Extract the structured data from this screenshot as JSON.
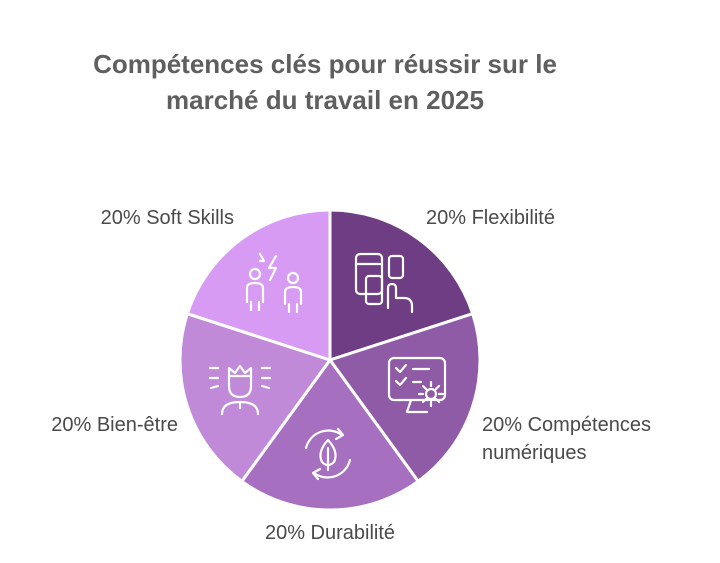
{
  "title": {
    "line1": "Compétences clés pour réussir sur le",
    "line2": "marché du travail en 2025"
  },
  "chart_data": {
    "type": "pie",
    "title": "Compétences clés pour réussir sur le marché du travail en 2025",
    "categories": [
      "Flexibilité",
      "Compétences numériques",
      "Durabilité",
      "Bien-être",
      "Soft Skills"
    ],
    "values": [
      20,
      20,
      20,
      20,
      20
    ],
    "unit": "%",
    "labels": [
      "20% Flexibilité",
      "20% Compétences numériques",
      "20% Durabilité",
      "20% Bien-être",
      "20% Soft Skills"
    ],
    "colors": [
      "#6e3d83",
      "#8f5aa6",
      "#a66fc0",
      "#c08ad9",
      "#d89bf3"
    ],
    "icons": [
      "devices-touch-icon",
      "checklist-gear-monitor-icon",
      "recycle-leaf-icon",
      "person-crown-icon",
      "two-people-lightning-icon"
    ],
    "legend": "none",
    "grid": false
  }
}
